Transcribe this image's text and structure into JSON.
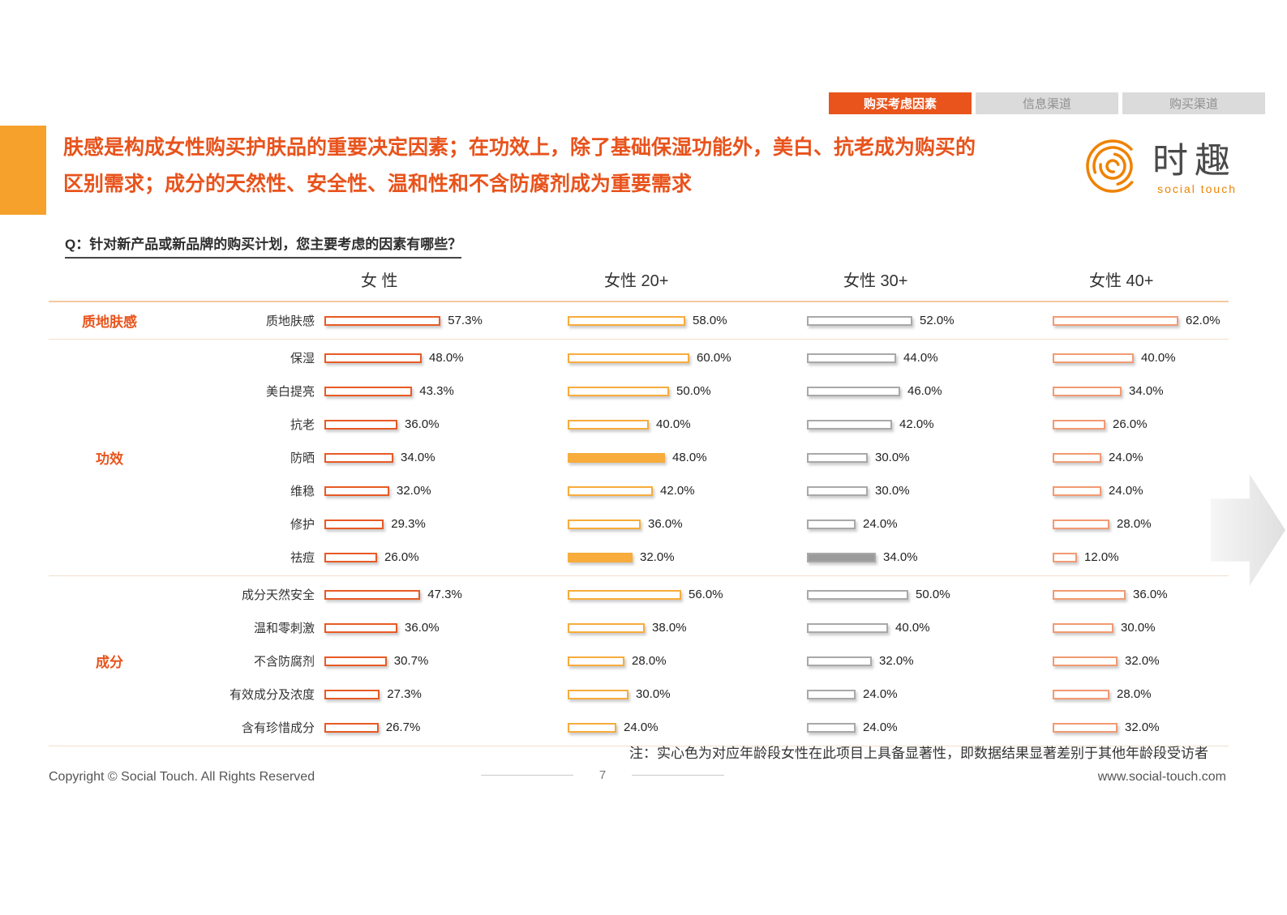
{
  "tabs": [
    {
      "label": "购买考虑因素",
      "active": true
    },
    {
      "label": "信息渠道",
      "active": false
    },
    {
      "label": "购买渠道",
      "active": false
    }
  ],
  "title": {
    "line1": "肤感是构成女性购买护肤品的重要决定因素；在功效上，除了基础保湿功能外，美白、抗老成为购买的",
    "line2": "区别需求；成分的天然性、安全性、温和性和不含防腐剂成为重要需求"
  },
  "logo": {
    "name": "时趣",
    "subtitle": "social touch"
  },
  "question": "Q：针对新产品或新品牌的购买计划，您主要考虑的因素有哪些？",
  "chart_data": {
    "type": "bar",
    "unit": "%",
    "xlim": [
      0,
      65
    ],
    "columns": [
      "女 性",
      "女性 20+",
      "女性 30+",
      "女性 40+"
    ],
    "legend_note": "实心色 = 该年龄段在此项目上具备显著性",
    "groups": [
      {
        "label": "质地肤感",
        "rows": [
          {
            "label": "质地肤感",
            "values": [
              57.3,
              58.0,
              52.0,
              62.0
            ],
            "solid": [
              false,
              false,
              false,
              false
            ]
          }
        ]
      },
      {
        "label": "功效",
        "rows": [
          {
            "label": "保湿",
            "values": [
              48.0,
              60.0,
              44.0,
              40.0
            ],
            "solid": [
              false,
              false,
              false,
              false
            ]
          },
          {
            "label": "美白提亮",
            "values": [
              43.3,
              50.0,
              46.0,
              34.0
            ],
            "solid": [
              false,
              false,
              false,
              false
            ]
          },
          {
            "label": "抗老",
            "values": [
              36.0,
              40.0,
              42.0,
              26.0
            ],
            "solid": [
              false,
              false,
              false,
              false
            ]
          },
          {
            "label": "防晒",
            "values": [
              34.0,
              48.0,
              30.0,
              24.0
            ],
            "solid": [
              false,
              true,
              false,
              false
            ]
          },
          {
            "label": "维稳",
            "values": [
              32.0,
              42.0,
              30.0,
              24.0
            ],
            "solid": [
              false,
              false,
              false,
              false
            ]
          },
          {
            "label": "修护",
            "values": [
              29.3,
              36.0,
              24.0,
              28.0
            ],
            "solid": [
              false,
              false,
              false,
              false
            ]
          },
          {
            "label": "祛痘",
            "values": [
              26.0,
              32.0,
              34.0,
              12.0
            ],
            "solid": [
              false,
              true,
              true,
              false
            ]
          }
        ]
      },
      {
        "label": "成分",
        "rows": [
          {
            "label": "成分天然安全",
            "values": [
              47.3,
              56.0,
              50.0,
              36.0
            ],
            "solid": [
              false,
              false,
              false,
              false
            ]
          },
          {
            "label": "温和零刺激",
            "values": [
              36.0,
              38.0,
              40.0,
              30.0
            ],
            "solid": [
              false,
              false,
              false,
              false
            ]
          },
          {
            "label": "不含防腐剂",
            "values": [
              30.7,
              28.0,
              32.0,
              32.0
            ],
            "solid": [
              false,
              false,
              false,
              false
            ]
          },
          {
            "label": "有效成分及浓度",
            "values": [
              27.3,
              30.0,
              24.0,
              28.0
            ],
            "solid": [
              false,
              false,
              false,
              false
            ]
          },
          {
            "label": "含有珍惜成分",
            "values": [
              26.7,
              24.0,
              24.0,
              32.0
            ],
            "solid": [
              false,
              false,
              false,
              false
            ]
          }
        ]
      }
    ]
  },
  "note": "注：实心色为对应年龄段女性在此项目上具备显著性，即数据结果显著差别于其他年龄段受访者",
  "footer": {
    "copyright": "Copyright © Social Touch. All Rights Reserved",
    "page": "7",
    "website": "www.social-touch.com"
  },
  "colors": {
    "accent": "#e8541c",
    "tab_active_bg": "#e8541c",
    "columns": [
      {
        "border": "#e85a25",
        "solid": "#e85a25"
      },
      {
        "border": "#f7ac3c",
        "solid": "#f7ac3c"
      },
      {
        "border": "#a9a9a9",
        "solid": "#9b9b9b"
      },
      {
        "border": "#f29a72",
        "solid": "#f29a72"
      }
    ]
  }
}
